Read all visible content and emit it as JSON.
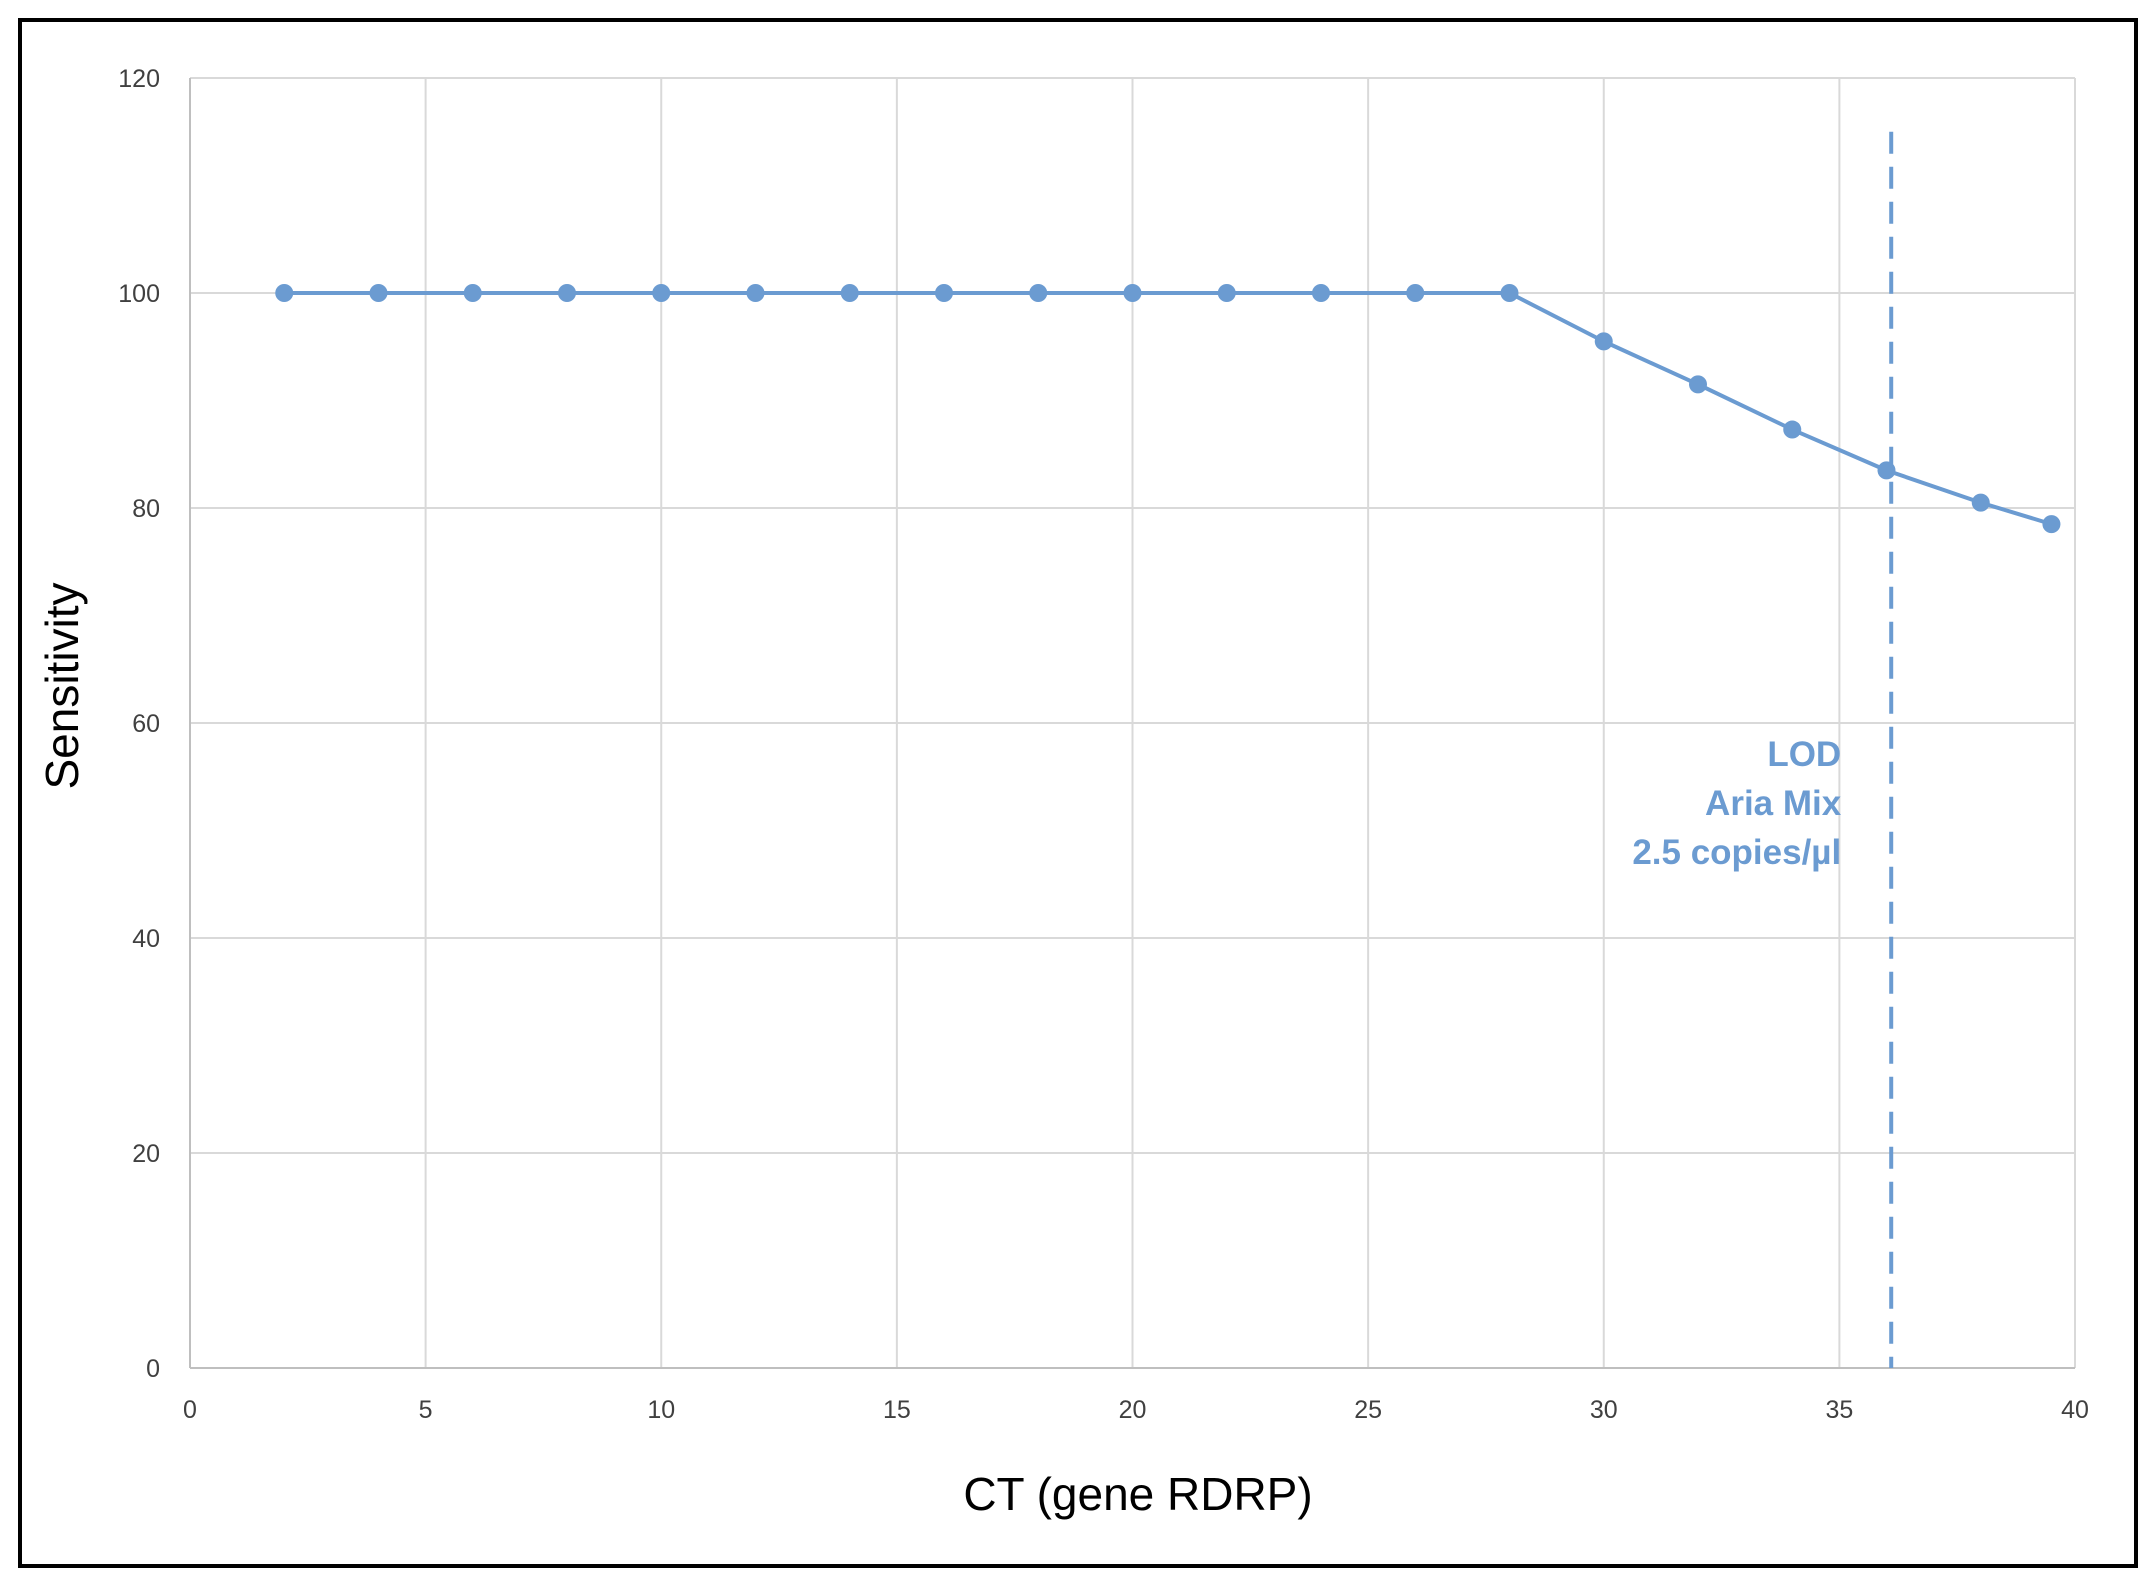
{
  "chart_data": {
    "type": "line",
    "title": "",
    "xlabel": "CT (gene RDRP)",
    "ylabel": "Sensitivity",
    "xlim": [
      0,
      40
    ],
    "ylim": [
      0,
      120
    ],
    "x_ticks": [
      0,
      5,
      10,
      15,
      20,
      25,
      30,
      35,
      40
    ],
    "y_ticks": [
      0,
      20,
      40,
      60,
      80,
      100,
      120
    ],
    "grid": true,
    "legend": "none",
    "series": [
      {
        "color": "#6b9bd1",
        "x": [
          2,
          4,
          6,
          8,
          10,
          12,
          14,
          16,
          18,
          20,
          22,
          24,
          26,
          28,
          30,
          32,
          34,
          36,
          38,
          39.5
        ],
        "y": [
          100,
          100,
          100,
          100,
          100,
          100,
          100,
          100,
          100,
          100,
          100,
          100,
          100,
          100,
          95.5,
          91.5,
          87.3,
          83.5,
          80.5,
          78.5
        ]
      }
    ],
    "reference_line": {
      "orientation": "vertical",
      "x": 36.1,
      "y_range": [
        0,
        115
      ],
      "style": "dashed",
      "color": "#6b9bd1"
    },
    "annotation": {
      "lines": [
        "LOD",
        "Aria Mix",
        "2.5 copies/µl"
      ],
      "color": "#6b9bd1"
    }
  }
}
